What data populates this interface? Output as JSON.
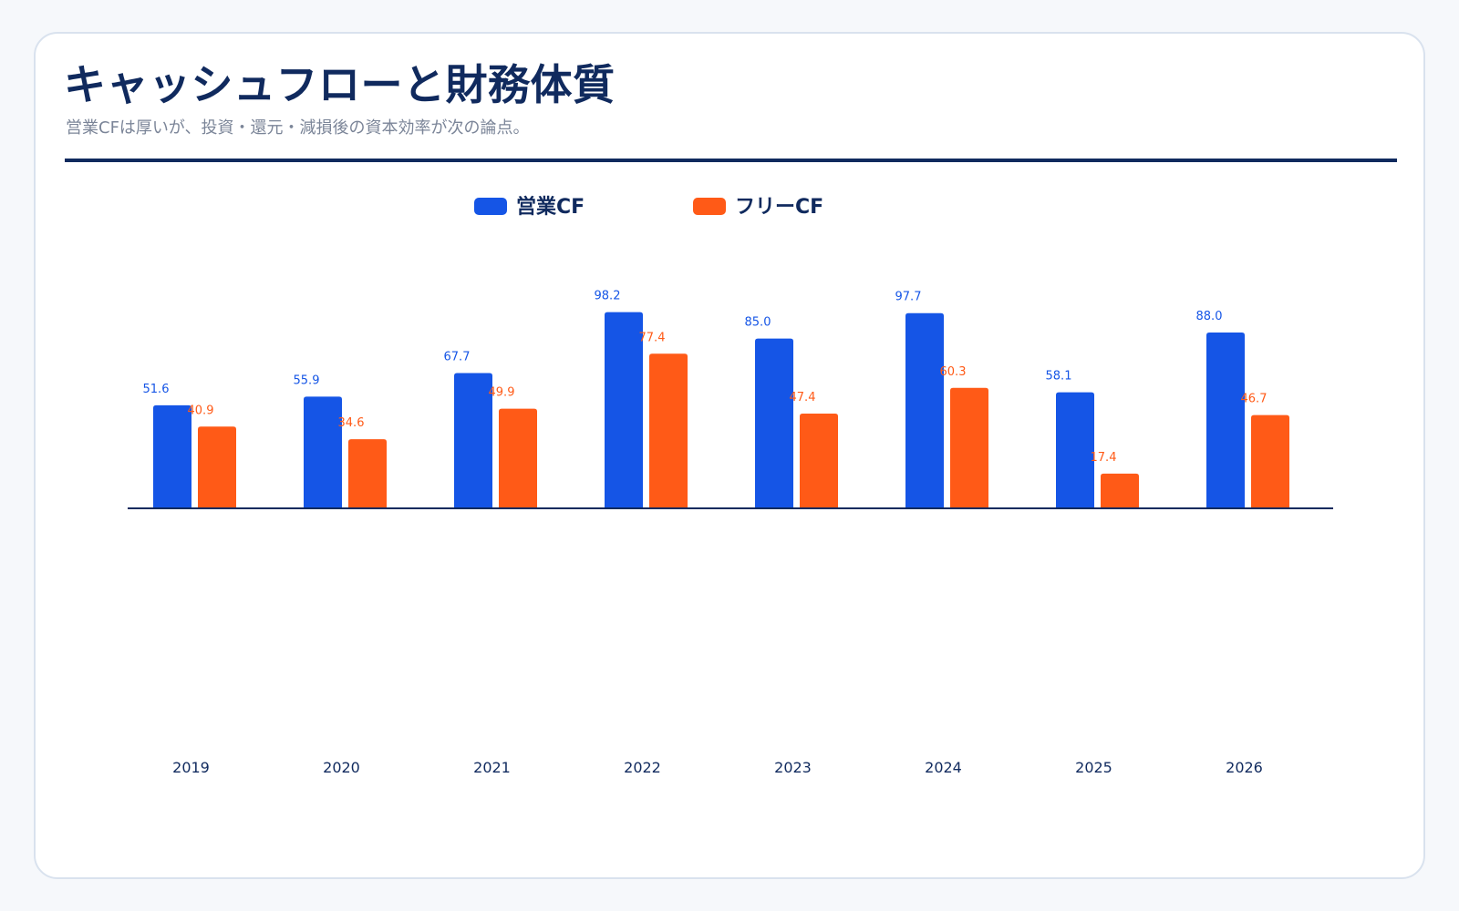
{
  "header": {
    "title": "キャッシュフローと財務体質",
    "subtitle": "営業CFは厚いが、投資・還元・減損後の資本効率が次の論点。"
  },
  "colors": {
    "operating": "#1555e6",
    "free": "#ff5a17",
    "axis": "#102a5e",
    "title": "#102a5e",
    "subtitle": "#7b8598"
  },
  "chart_data": {
    "type": "bar",
    "title": "",
    "xlabel": "",
    "ylabel": "",
    "categories": [
      "2019",
      "2020",
      "2021",
      "2022",
      "2023",
      "2024",
      "2025",
      "2026"
    ],
    "series": [
      {
        "name": "営業CF",
        "color": "#1555e6",
        "values": [
          51.6,
          55.9,
          67.7,
          98.2,
          85.0,
          97.7,
          58.1,
          88.0
        ],
        "labels": [
          "51.6",
          "55.9",
          "67.7",
          "98.2",
          "85.0",
          "97.7",
          "58.1",
          "88.0"
        ]
      },
      {
        "name": "フリーCF",
        "color": "#ff5a17",
        "values": [
          40.9,
          34.6,
          49.9,
          77.4,
          47.4,
          60.3,
          17.4,
          46.7
        ],
        "labels": [
          "40.9",
          "34.6",
          "49.9",
          "77.4",
          "47.4",
          "60.3",
          "17.4",
          "46.7"
        ]
      }
    ],
    "ylim": [
      0,
      100
    ],
    "grid": false,
    "legend_position": "top"
  }
}
